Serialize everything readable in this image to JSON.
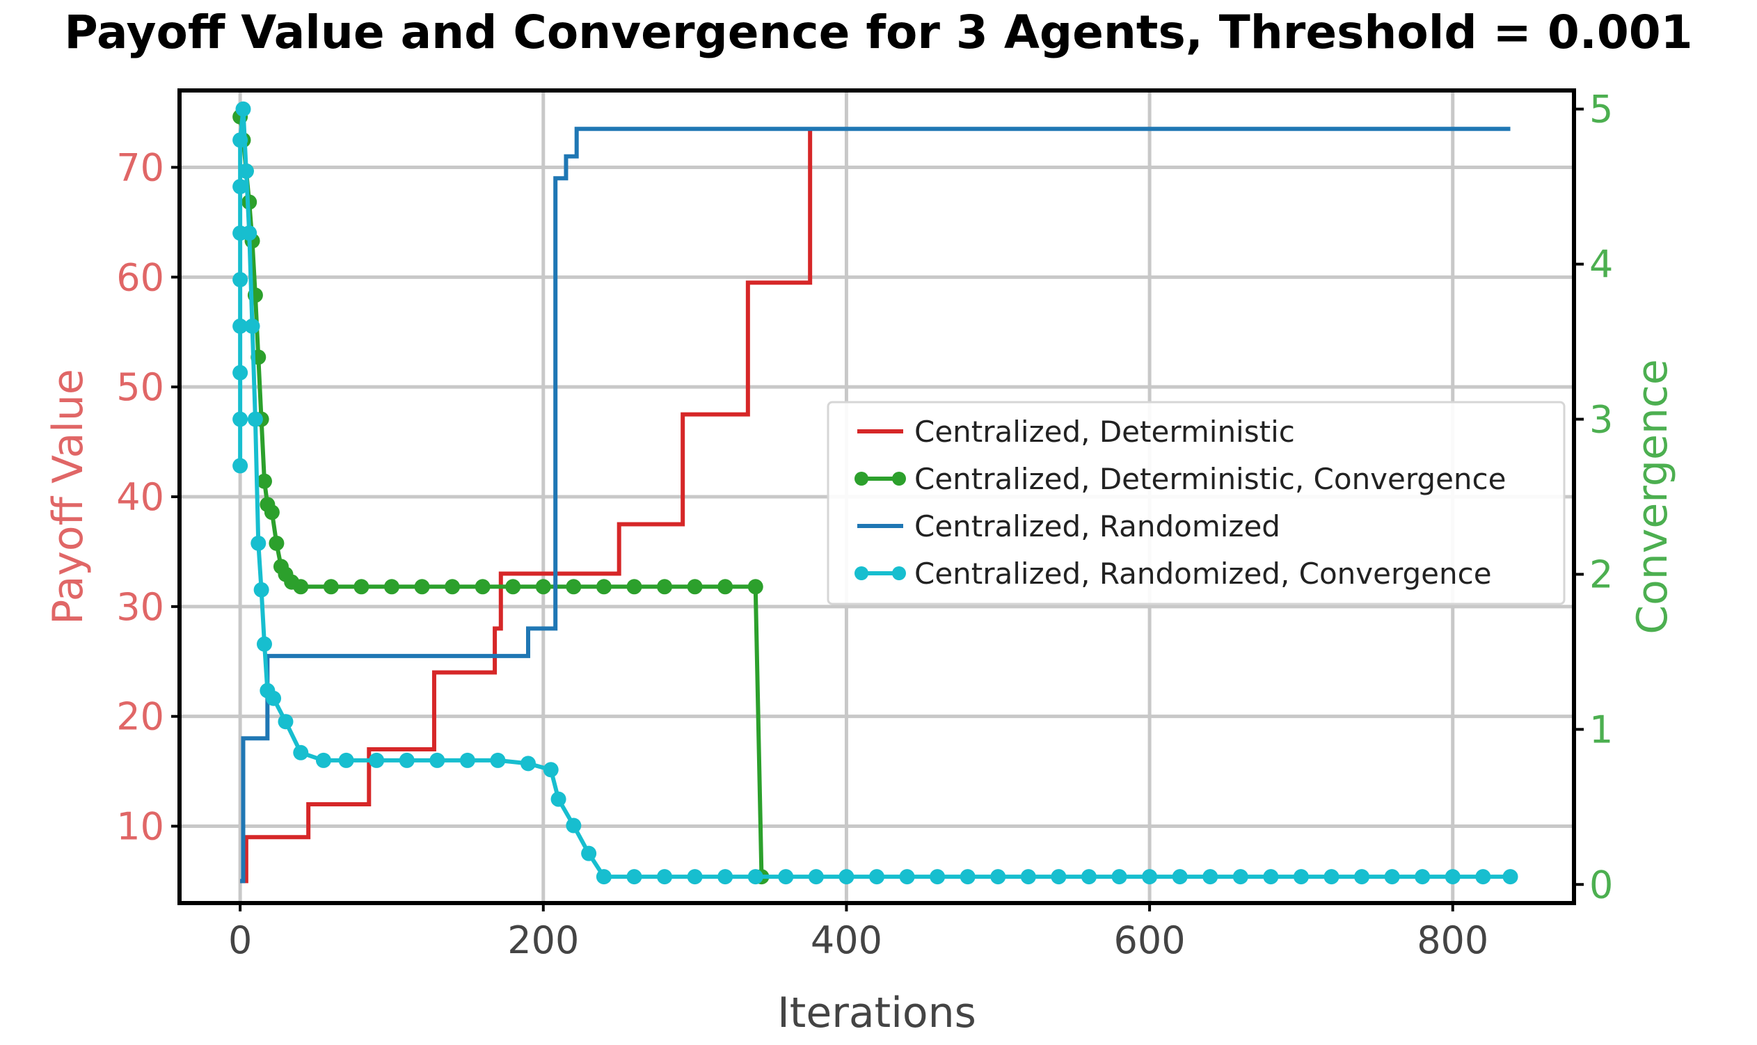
{
  "chart_data": {
    "type": "line",
    "title": "Payoff Value and Convergence for 3 Agents, Threshold = 0.001",
    "xlabel": "Iterations",
    "ylabel": "Payoff Value",
    "y2label": "Convergence",
    "xlim": [
      -40,
      880
    ],
    "ylim": [
      3,
      77
    ],
    "y2lim": [
      -0.12,
      5.12
    ],
    "xticks": [
      0,
      200,
      400,
      600,
      800
    ],
    "yticks": [
      10,
      20,
      30,
      40,
      50,
      60,
      70
    ],
    "y2ticks": [
      0,
      1,
      2,
      3,
      4,
      5
    ],
    "grid": true,
    "legend_position": "center-right",
    "colors": {
      "ylabel": "#e06666",
      "y2label": "#4caf50",
      "grid": "#c8c8c8"
    },
    "series": [
      {
        "name": "Centralized, Deterministic",
        "axis": "left",
        "color": "#d62728",
        "marker": false,
        "step": true,
        "points": [
          [
            0,
            5
          ],
          [
            4,
            9
          ],
          [
            45,
            12
          ],
          [
            85,
            17
          ],
          [
            128,
            24
          ],
          [
            168,
            28
          ],
          [
            172,
            33
          ],
          [
            250,
            37.5
          ],
          [
            292,
            47.5
          ],
          [
            335,
            59.5
          ],
          [
            376,
            73.5
          ]
        ]
      },
      {
        "name": "Centralized, Deterministic, Convergence",
        "axis": "right",
        "color": "#2ca02c",
        "marker": true,
        "step": false,
        "points": [
          [
            0,
            4.95
          ],
          [
            2,
            4.8
          ],
          [
            4,
            4.6
          ],
          [
            6,
            4.4
          ],
          [
            8,
            4.15
          ],
          [
            10,
            3.8
          ],
          [
            12,
            3.4
          ],
          [
            14,
            3.0
          ],
          [
            16,
            2.6
          ],
          [
            18,
            2.45
          ],
          [
            21,
            2.4
          ],
          [
            24,
            2.2
          ],
          [
            27,
            2.05
          ],
          [
            30,
            2.0
          ],
          [
            34,
            1.95
          ],
          [
            40,
            1.92
          ],
          [
            60,
            1.92
          ],
          [
            80,
            1.92
          ],
          [
            100,
            1.92
          ],
          [
            120,
            1.92
          ],
          [
            140,
            1.92
          ],
          [
            160,
            1.92
          ],
          [
            180,
            1.92
          ],
          [
            200,
            1.92
          ],
          [
            220,
            1.92
          ],
          [
            240,
            1.92
          ],
          [
            260,
            1.92
          ],
          [
            280,
            1.92
          ],
          [
            300,
            1.92
          ],
          [
            320,
            1.92
          ],
          [
            340,
            1.92
          ],
          [
            344,
            0.05
          ]
        ]
      },
      {
        "name": "Centralized, Randomized",
        "axis": "left",
        "color": "#1f77b4",
        "marker": false,
        "step": true,
        "points": [
          [
            0,
            5
          ],
          [
            2,
            18
          ],
          [
            18,
            25.5
          ],
          [
            190,
            28
          ],
          [
            208,
            69
          ],
          [
            215,
            71
          ],
          [
            222,
            73.5
          ],
          [
            838,
            73.5
          ]
        ]
      },
      {
        "name": "Centralized, Randomized, Convergence",
        "axis": "right",
        "color": "#17becf",
        "marker": true,
        "step": false,
        "points": [
          [
            0,
            2.7
          ],
          [
            0,
            3.0
          ],
          [
            0,
            3.3
          ],
          [
            0,
            3.6
          ],
          [
            0,
            3.9
          ],
          [
            0,
            4.2
          ],
          [
            0,
            4.5
          ],
          [
            0,
            4.8
          ],
          [
            2,
            5.0
          ],
          [
            4,
            4.6
          ],
          [
            6,
            4.2
          ],
          [
            8,
            3.6
          ],
          [
            10,
            3.0
          ],
          [
            12,
            2.2
          ],
          [
            14,
            1.9
          ],
          [
            16,
            1.55
          ],
          [
            18,
            1.25
          ],
          [
            22,
            1.2
          ],
          [
            30,
            1.05
          ],
          [
            40,
            0.85
          ],
          [
            55,
            0.8
          ],
          [
            70,
            0.8
          ],
          [
            90,
            0.8
          ],
          [
            110,
            0.8
          ],
          [
            130,
            0.8
          ],
          [
            150,
            0.8
          ],
          [
            170,
            0.8
          ],
          [
            190,
            0.78
          ],
          [
            205,
            0.74
          ],
          [
            210,
            0.55
          ],
          [
            220,
            0.38
          ],
          [
            230,
            0.2
          ],
          [
            240,
            0.05
          ],
          [
            260,
            0.05
          ],
          [
            280,
            0.05
          ],
          [
            300,
            0.05
          ],
          [
            320,
            0.05
          ],
          [
            340,
            0.05
          ],
          [
            360,
            0.05
          ],
          [
            380,
            0.05
          ],
          [
            400,
            0.05
          ],
          [
            420,
            0.05
          ],
          [
            440,
            0.05
          ],
          [
            460,
            0.05
          ],
          [
            480,
            0.05
          ],
          [
            500,
            0.05
          ],
          [
            520,
            0.05
          ],
          [
            540,
            0.05
          ],
          [
            560,
            0.05
          ],
          [
            580,
            0.05
          ],
          [
            600,
            0.05
          ],
          [
            620,
            0.05
          ],
          [
            640,
            0.05
          ],
          [
            660,
            0.05
          ],
          [
            680,
            0.05
          ],
          [
            700,
            0.05
          ],
          [
            720,
            0.05
          ],
          [
            740,
            0.05
          ],
          [
            760,
            0.05
          ],
          [
            780,
            0.05
          ],
          [
            800,
            0.05
          ],
          [
            820,
            0.05
          ],
          [
            838,
            0.05
          ]
        ]
      }
    ]
  }
}
